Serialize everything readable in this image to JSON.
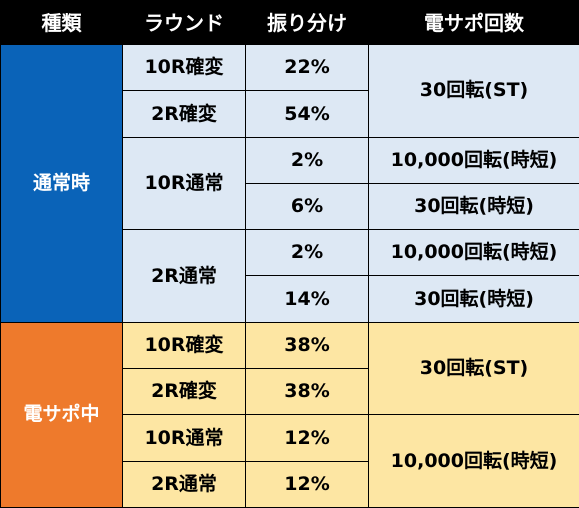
{
  "headers": [
    "種類",
    "ラウンド",
    "振り分け",
    "電サポ回数"
  ],
  "colors": {
    "header_bg": "#000000",
    "normal_mode": "#0a63b8",
    "support_mode": "#ee7a2c",
    "normal_cells": "#dde8f4",
    "support_cells": "#fde6a3"
  },
  "normal": {
    "mode": "通常時",
    "rows": [
      {
        "round": "10R確変",
        "share": "22%",
        "support": "30回転(ST)"
      },
      {
        "round": "2R確変",
        "share": "54%"
      },
      {
        "round": "10R通常",
        "share": "2%",
        "support": "10,000回転(時短)"
      },
      {
        "share": "6%",
        "support": "30回転(時短)"
      },
      {
        "round": "2R通常",
        "share": "2%",
        "support": "10,000回転(時短)"
      },
      {
        "share": "14%",
        "support": "30回転(時短)"
      }
    ]
  },
  "support": {
    "mode": "電サポ中",
    "rows": [
      {
        "round": "10R確変",
        "share": "38%",
        "support": "30回転(ST)"
      },
      {
        "round": "2R確変",
        "share": "38%"
      },
      {
        "round": "10R通常",
        "share": "12%",
        "support": "10,000回転(時短)"
      },
      {
        "round": "2R通常",
        "share": "12%"
      }
    ]
  }
}
